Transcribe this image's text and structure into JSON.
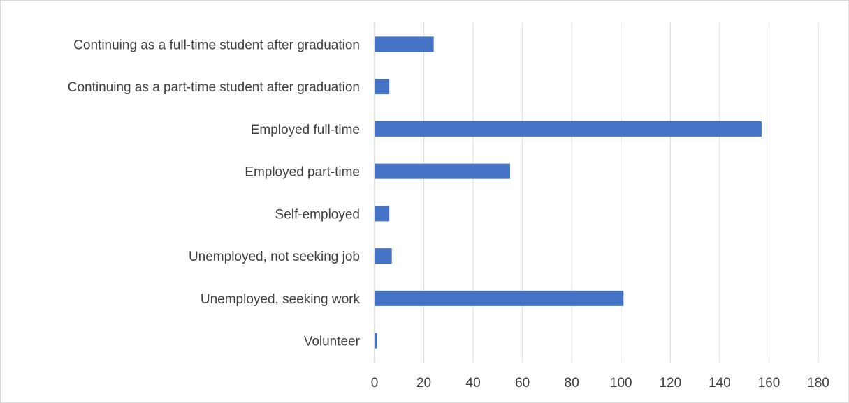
{
  "chart_data": {
    "type": "bar",
    "orientation": "horizontal",
    "title": "",
    "xlabel": "",
    "ylabel": "",
    "categories": [
      "Continuing as a full-time student after graduation",
      "Continuing as a part-time student after graduation",
      "Employed full-time",
      "Employed part-time",
      "Self-employed",
      "Unemployed, not seeking job",
      "Unemployed, seeking work",
      "Volunteer"
    ],
    "values": [
      24,
      6,
      157,
      55,
      6,
      7,
      101,
      1
    ],
    "xlim": [
      0,
      180
    ],
    "xticks": [
      "0",
      "20",
      "40",
      "60",
      "80",
      "100",
      "120",
      "140",
      "160",
      "180"
    ],
    "grid": "vertical",
    "legend": "none",
    "bar_color": "#4472c4"
  }
}
